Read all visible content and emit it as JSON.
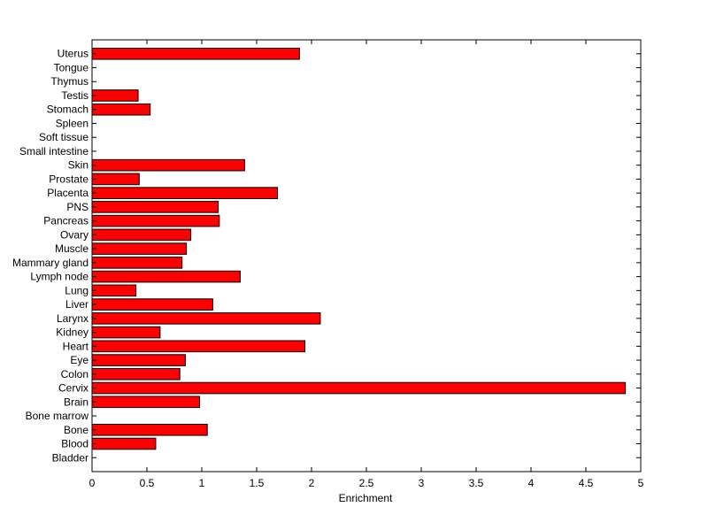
{
  "chart_data": {
    "type": "bar",
    "orientation": "horizontal",
    "title": "",
    "xlabel": "Enrichment",
    "ylabel": "",
    "xlim": [
      0,
      5
    ],
    "x_ticks": [
      "0",
      "0.5",
      "1",
      "1.5",
      "2",
      "2.5",
      "3",
      "3.5",
      "4",
      "4.5",
      "5"
    ],
    "bar_color": "#ff0000",
    "bar_edge_color": "#000000",
    "grid": false,
    "categories": [
      "Bladder",
      "Blood",
      "Bone",
      "Bone marrow",
      "Brain",
      "Cervix",
      "Colon",
      "Eye",
      "Heart",
      "Kidney",
      "Larynx",
      "Liver",
      "Lung",
      "Lymph node",
      "Mammary gland",
      "Muscle",
      "Ovary",
      "Pancreas",
      "PNS",
      "Placenta",
      "Prostate",
      "Skin",
      "Small intestine",
      "Soft tissue",
      "Spleen",
      "Stomach",
      "Testis",
      "Thymus",
      "Tongue",
      "Uterus"
    ],
    "values": [
      0,
      0.58,
      1.05,
      0,
      0.98,
      4.86,
      0.8,
      0.85,
      1.94,
      0.62,
      2.08,
      1.1,
      0.4,
      1.35,
      0.82,
      0.86,
      0.9,
      1.16,
      1.15,
      1.69,
      0.43,
      1.39,
      0,
      0,
      0,
      0.53,
      0.42,
      0,
      0,
      1.89
    ]
  }
}
